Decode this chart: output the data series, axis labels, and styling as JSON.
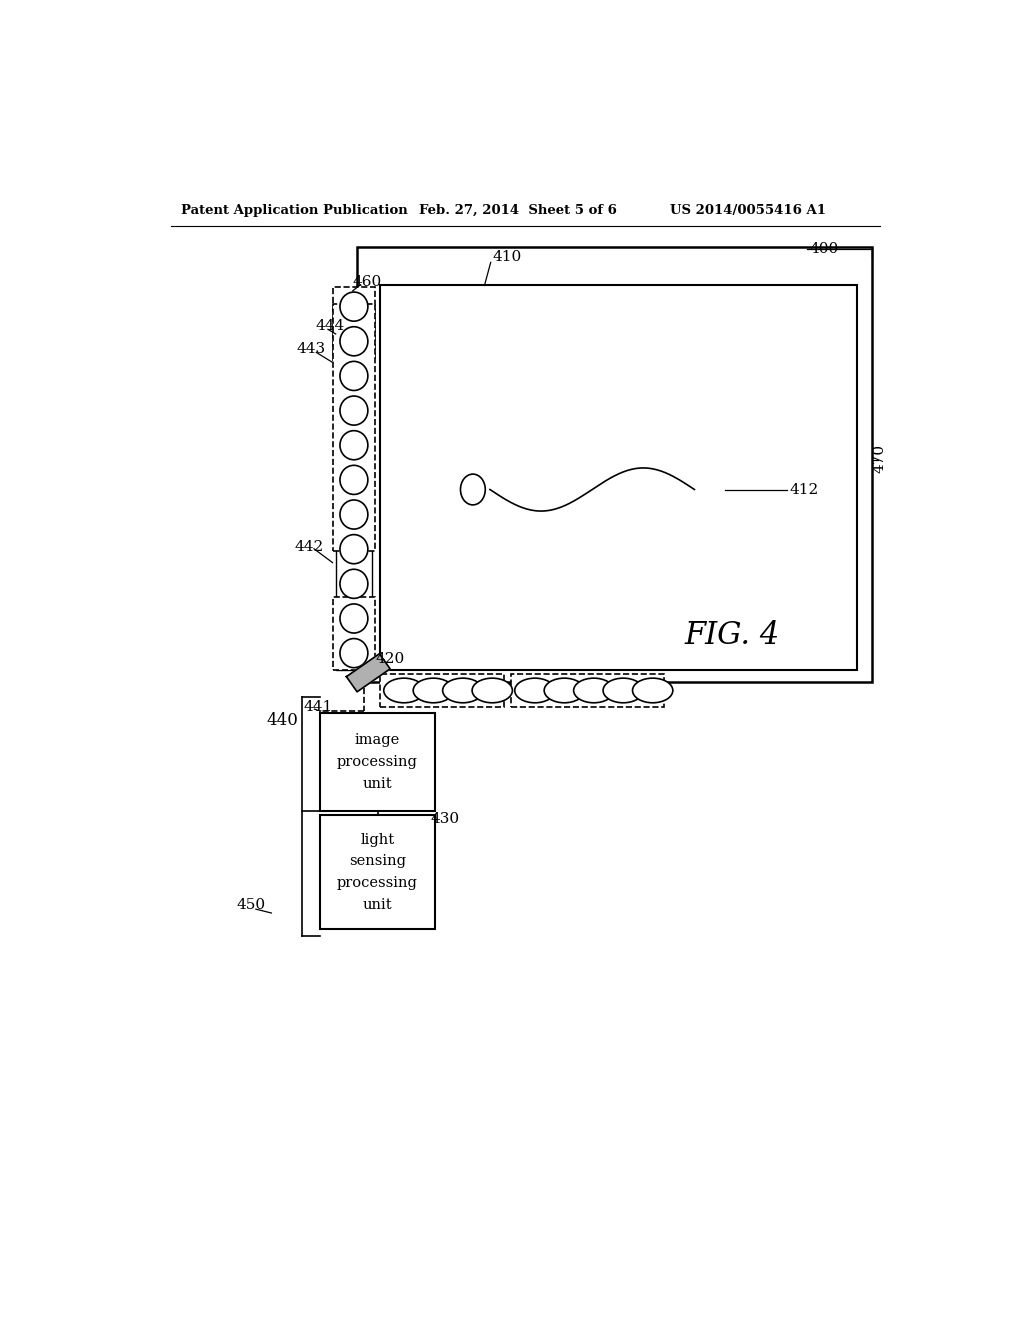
{
  "bg_color": "#ffffff",
  "header_left": "Patent Application Publication",
  "header_mid": "Feb. 27, 2014  Sheet 5 of 6",
  "header_right": "US 2014/0055416 A1",
  "fig_label": "FIG. 4",
  "text_image_processing": "image\nprocessing\nunit",
  "text_light_sensing": "light\nsensing\nprocessing\nunit",
  "lw_thin": 1.0,
  "lw_med": 1.5,
  "lw_thick": 2.0,
  "font_size_label": 11,
  "font_size_header": 9.5,
  "font_size_fig": 22
}
